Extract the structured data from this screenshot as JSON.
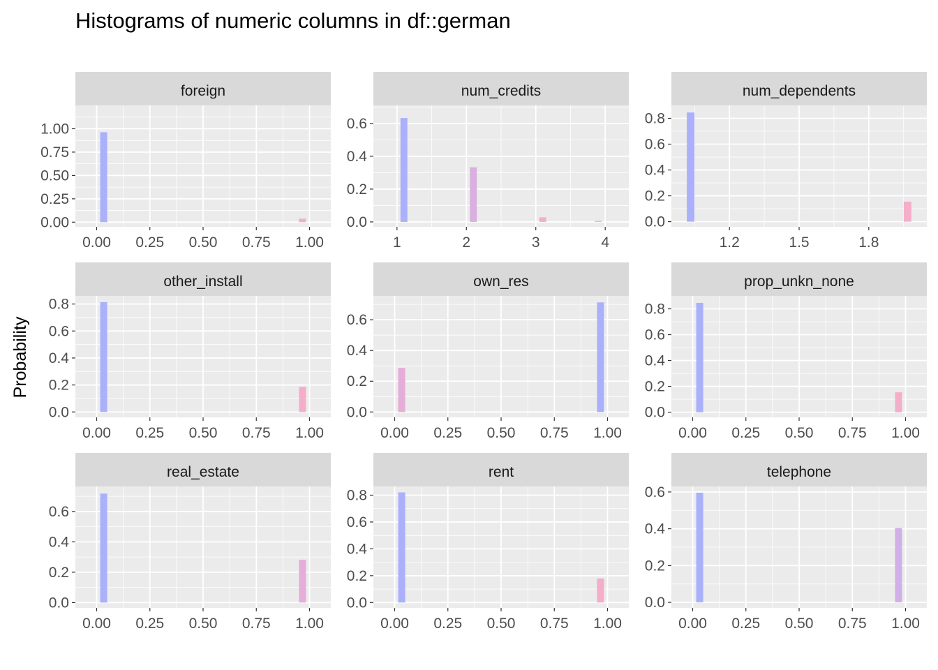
{
  "chart_data": {
    "title": "Histograms of numeric columns in df::german",
    "ylabel": "Probability",
    "type": "bar",
    "panels": [
      {
        "name": "foreign",
        "xlim": [
          -0.1,
          1.1
        ],
        "ylim": [
          -0.05,
          1.25
        ],
        "xticks": [
          {
            "v": 0,
            "l": "0.00"
          },
          {
            "v": 0.25,
            "l": "0.25"
          },
          {
            "v": 0.5,
            "l": "0.50"
          },
          {
            "v": 0.75,
            "l": "0.75"
          },
          {
            "v": 1,
            "l": "1.00"
          }
        ],
        "yticks": [
          {
            "v": 0,
            "l": "0.00"
          },
          {
            "v": 0.25,
            "l": "0.25"
          },
          {
            "v": 0.5,
            "l": "0.50"
          },
          {
            "v": 0.75,
            "l": "0.75"
          },
          {
            "v": 1,
            "l": "1.00"
          }
        ],
        "barwidth": 0.033,
        "bars": [
          {
            "x": 0.033,
            "y": 0.963,
            "color": "#aab1fa"
          },
          {
            "x": 0.967,
            "y": 0.037,
            "color": "#f4aec9"
          }
        ]
      },
      {
        "name": "num_credits",
        "xlim": [
          0.66,
          4.34
        ],
        "ylim": [
          -0.03,
          0.71
        ],
        "xticks": [
          {
            "v": 1,
            "l": "1"
          },
          {
            "v": 2,
            "l": "2"
          },
          {
            "v": 3,
            "l": "3"
          },
          {
            "v": 4,
            "l": "4"
          }
        ],
        "yticks": [
          {
            "v": 0,
            "l": "0.0"
          },
          {
            "v": 0.2,
            "l": "0.2"
          },
          {
            "v": 0.4,
            "l": "0.4"
          },
          {
            "v": 0.6,
            "l": "0.6"
          }
        ],
        "barwidth": 0.1,
        "bars": [
          {
            "x": 1.1,
            "y": 0.633,
            "color": "#aab1fa"
          },
          {
            "x": 2.1,
            "y": 0.333,
            "color": "#d9b0df"
          },
          {
            "x": 3.1,
            "y": 0.028,
            "color": "#f4aec9"
          },
          {
            "x": 3.9,
            "y": 0.006,
            "color": "#f4aec9"
          }
        ]
      },
      {
        "name": "num_dependents",
        "xlim": [
          0.95,
          2.05
        ],
        "ylim": [
          -0.04,
          0.9
        ],
        "xticks": [
          {
            "v": 1.2,
            "l": "1.2"
          },
          {
            "v": 1.5,
            "l": "1.5"
          },
          {
            "v": 1.8,
            "l": "1.8"
          }
        ],
        "yticks": [
          {
            "v": 0,
            "l": "0.0"
          },
          {
            "v": 0.2,
            "l": "0.2"
          },
          {
            "v": 0.4,
            "l": "0.4"
          },
          {
            "v": 0.6,
            "l": "0.6"
          },
          {
            "v": 0.8,
            "l": "0.8"
          }
        ],
        "barwidth": 0.033,
        "bars": [
          {
            "x": 1.033,
            "y": 0.845,
            "color": "#aab1fa"
          },
          {
            "x": 1.967,
            "y": 0.155,
            "color": "#f4aec9"
          }
        ]
      },
      {
        "name": "other_install",
        "xlim": [
          -0.1,
          1.1
        ],
        "ylim": [
          -0.04,
          0.86
        ],
        "xticks": [
          {
            "v": 0,
            "l": "0.00"
          },
          {
            "v": 0.25,
            "l": "0.25"
          },
          {
            "v": 0.5,
            "l": "0.50"
          },
          {
            "v": 0.75,
            "l": "0.75"
          },
          {
            "v": 1,
            "l": "1.00"
          }
        ],
        "yticks": [
          {
            "v": 0,
            "l": "0.0"
          },
          {
            "v": 0.2,
            "l": "0.2"
          },
          {
            "v": 0.4,
            "l": "0.4"
          },
          {
            "v": 0.6,
            "l": "0.6"
          },
          {
            "v": 0.8,
            "l": "0.8"
          }
        ],
        "barwidth": 0.033,
        "bars": [
          {
            "x": 0.033,
            "y": 0.814,
            "color": "#aab1fa"
          },
          {
            "x": 0.967,
            "y": 0.186,
            "color": "#f4aec9"
          }
        ]
      },
      {
        "name": "own_res",
        "xlim": [
          -0.1,
          1.1
        ],
        "ylim": [
          -0.035,
          0.755
        ],
        "xticks": [
          {
            "v": 0,
            "l": "0.00"
          },
          {
            "v": 0.25,
            "l": "0.25"
          },
          {
            "v": 0.5,
            "l": "0.50"
          },
          {
            "v": 0.75,
            "l": "0.75"
          },
          {
            "v": 1,
            "l": "1.00"
          }
        ],
        "yticks": [
          {
            "v": 0,
            "l": "0.0"
          },
          {
            "v": 0.2,
            "l": "0.2"
          },
          {
            "v": 0.4,
            "l": "0.4"
          },
          {
            "v": 0.6,
            "l": "0.6"
          }
        ],
        "barwidth": 0.033,
        "bars": [
          {
            "x": 0.033,
            "y": 0.287,
            "color": "#e5aed8"
          },
          {
            "x": 0.967,
            "y": 0.713,
            "color": "#aab1fa"
          }
        ]
      },
      {
        "name": "prop_unkn_none",
        "xlim": [
          -0.1,
          1.1
        ],
        "ylim": [
          -0.04,
          0.9
        ],
        "xticks": [
          {
            "v": 0,
            "l": "0.00"
          },
          {
            "v": 0.25,
            "l": "0.25"
          },
          {
            "v": 0.5,
            "l": "0.50"
          },
          {
            "v": 0.75,
            "l": "0.75"
          },
          {
            "v": 1,
            "l": "1.00"
          }
        ],
        "yticks": [
          {
            "v": 0,
            "l": "0.0"
          },
          {
            "v": 0.2,
            "l": "0.2"
          },
          {
            "v": 0.4,
            "l": "0.4"
          },
          {
            "v": 0.6,
            "l": "0.6"
          },
          {
            "v": 0.8,
            "l": "0.8"
          }
        ],
        "barwidth": 0.033,
        "bars": [
          {
            "x": 0.033,
            "y": 0.846,
            "color": "#aab1fa"
          },
          {
            "x": 0.967,
            "y": 0.154,
            "color": "#f4aec9"
          }
        ]
      },
      {
        "name": "real_estate",
        "xlim": [
          -0.1,
          1.1
        ],
        "ylim": [
          -0.035,
          0.765
        ],
        "xticks": [
          {
            "v": 0,
            "l": "0.00"
          },
          {
            "v": 0.25,
            "l": "0.25"
          },
          {
            "v": 0.5,
            "l": "0.50"
          },
          {
            "v": 0.75,
            "l": "0.75"
          },
          {
            "v": 1,
            "l": "1.00"
          }
        ],
        "yticks": [
          {
            "v": 0,
            "l": "0.0"
          },
          {
            "v": 0.2,
            "l": "0.2"
          },
          {
            "v": 0.4,
            "l": "0.4"
          },
          {
            "v": 0.6,
            "l": "0.6"
          }
        ],
        "barwidth": 0.033,
        "bars": [
          {
            "x": 0.033,
            "y": 0.718,
            "color": "#aab1fa"
          },
          {
            "x": 0.967,
            "y": 0.282,
            "color": "#e5aed8"
          }
        ]
      },
      {
        "name": "rent",
        "xlim": [
          -0.1,
          1.1
        ],
        "ylim": [
          -0.04,
          0.865
        ],
        "xticks": [
          {
            "v": 0,
            "l": "0.00"
          },
          {
            "v": 0.25,
            "l": "0.25"
          },
          {
            "v": 0.5,
            "l": "0.50"
          },
          {
            "v": 0.75,
            "l": "0.75"
          },
          {
            "v": 1,
            "l": "1.00"
          }
        ],
        "yticks": [
          {
            "v": 0,
            "l": "0.0"
          },
          {
            "v": 0.2,
            "l": "0.2"
          },
          {
            "v": 0.4,
            "l": "0.4"
          },
          {
            "v": 0.6,
            "l": "0.6"
          },
          {
            "v": 0.8,
            "l": "0.8"
          }
        ],
        "barwidth": 0.033,
        "bars": [
          {
            "x": 0.033,
            "y": 0.821,
            "color": "#aab1fa"
          },
          {
            "x": 0.967,
            "y": 0.179,
            "color": "#f4aec9"
          }
        ]
      },
      {
        "name": "telephone",
        "xlim": [
          -0.1,
          1.1
        ],
        "ylim": [
          -0.03,
          0.63
        ],
        "xticks": [
          {
            "v": 0,
            "l": "0.00"
          },
          {
            "v": 0.25,
            "l": "0.25"
          },
          {
            "v": 0.5,
            "l": "0.50"
          },
          {
            "v": 0.75,
            "l": "0.75"
          },
          {
            "v": 1,
            "l": "1.00"
          }
        ],
        "yticks": [
          {
            "v": 0,
            "l": "0.0"
          },
          {
            "v": 0.2,
            "l": "0.2"
          },
          {
            "v": 0.4,
            "l": "0.4"
          },
          {
            "v": 0.6,
            "l": "0.6"
          }
        ],
        "barwidth": 0.033,
        "bars": [
          {
            "x": 0.033,
            "y": 0.596,
            "color": "#aab1fa"
          },
          {
            "x": 0.967,
            "y": 0.404,
            "color": "#d1b0e8"
          }
        ]
      }
    ],
    "grid": true,
    "legend": "none"
  }
}
